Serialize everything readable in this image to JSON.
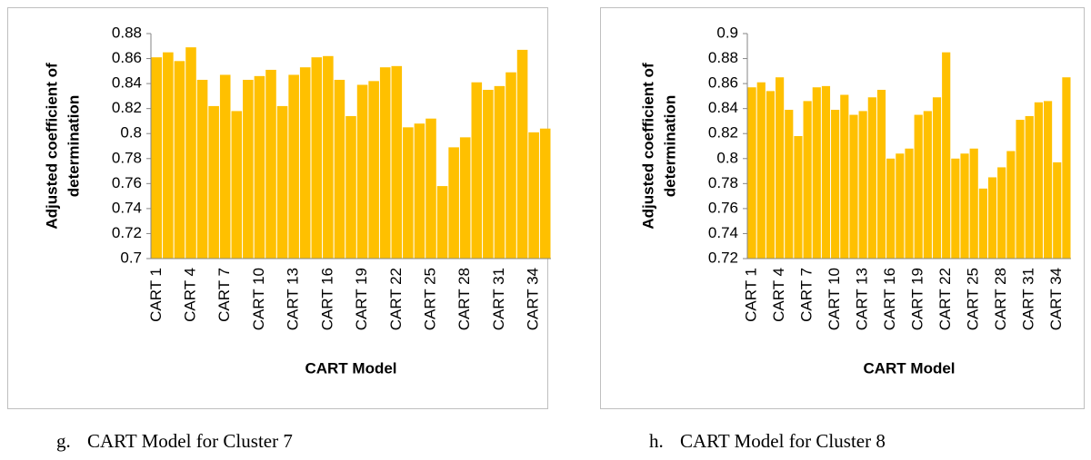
{
  "chart_data": [
    {
      "type": "bar",
      "caption_letter": "g.",
      "caption": "CART Model for Cluster 7",
      "xlabel": "CART Model",
      "ylabel": [
        "Adjusted coefficient of",
        "determination"
      ],
      "categories": [
        "CART 1",
        null,
        null,
        "CART 4",
        null,
        null,
        "CART 7",
        null,
        null,
        "CART 10",
        null,
        null,
        "CART 13",
        null,
        null,
        "CART 16",
        null,
        null,
        "CART 19",
        null,
        null,
        "CART 22",
        null,
        null,
        "CART 25",
        null,
        null,
        "CART 28",
        null,
        null,
        "CART 31",
        null,
        null,
        "CART 34",
        null
      ],
      "values": [
        0.861,
        0.865,
        0.858,
        0.869,
        0.843,
        0.822,
        0.847,
        0.818,
        0.843,
        0.846,
        0.851,
        0.822,
        0.847,
        0.853,
        0.861,
        0.862,
        0.843,
        0.814,
        0.839,
        0.842,
        0.853,
        0.854,
        0.805,
        0.808,
        0.812,
        0.758,
        0.789,
        0.797,
        0.841,
        0.835,
        0.838,
        0.849,
        0.867,
        0.801,
        0.804
      ],
      "color": "#ffc000",
      "ylim": [
        0.7,
        0.88
      ],
      "yticks": [
        0.7,
        0.72,
        0.74,
        0.76,
        0.78,
        0.8,
        0.82,
        0.84,
        0.86,
        0.88
      ],
      "grid": false
    },
    {
      "type": "bar",
      "caption_letter": "h.",
      "caption": "CART Model for Cluster 8",
      "xlabel": "CART Model",
      "ylabel": [
        "Adjusted coefficient of",
        "determination"
      ],
      "categories": [
        "CART 1",
        null,
        null,
        "CART 4",
        null,
        null,
        "CART 7",
        null,
        null,
        "CART 10",
        null,
        null,
        "CART 13",
        null,
        null,
        "CART 16",
        null,
        null,
        "CART 19",
        null,
        null,
        "CART 22",
        null,
        null,
        "CART 25",
        null,
        null,
        "CART 28",
        null,
        null,
        "CART 31",
        null,
        null,
        "CART 34",
        null
      ],
      "values": [
        0.857,
        0.861,
        0.854,
        0.865,
        0.839,
        0.818,
        0.846,
        0.857,
        0.858,
        0.839,
        0.851,
        0.835,
        0.838,
        0.849,
        0.855,
        0.8,
        0.804,
        0.808,
        0.835,
        0.838,
        0.849,
        0.885,
        0.8,
        0.804,
        0.808,
        0.776,
        0.785,
        0.793,
        0.806,
        0.831,
        0.834,
        0.845,
        0.846,
        0.797,
        0.865
      ],
      "color": "#ffc000",
      "ylim": [
        0.72,
        0.9
      ],
      "yticks": [
        0.72,
        0.74,
        0.76,
        0.78,
        0.8,
        0.82,
        0.84,
        0.86,
        0.88,
        0.9
      ],
      "grid": false
    }
  ]
}
